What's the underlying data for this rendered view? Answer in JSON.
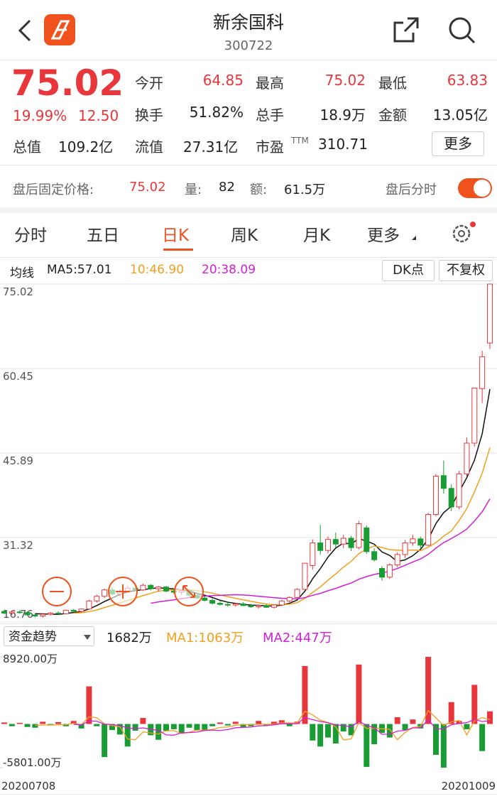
{
  "header": {
    "title": "新余国科",
    "code": "300722"
  },
  "quote": {
    "price": "75.02",
    "change_pct": "19.99%",
    "change": "12.50",
    "fields": [
      [
        {
          "label": "今开",
          "value": "64.85"
        },
        {
          "label": "最高",
          "value": "75.02"
        },
        {
          "label": "最低",
          "value": "63.83"
        }
      ],
      [
        {
          "label": "换手",
          "value": "51.82%"
        },
        {
          "label": "总手",
          "value": "18.9万"
        },
        {
          "label": "金额",
          "value": "13.05亿"
        }
      ]
    ],
    "stats": [
      {
        "label": "总值",
        "value": "109.2亿"
      },
      {
        "label": "流值",
        "value": "27.31亿"
      },
      {
        "label": "市盈",
        "sup": "TTM",
        "value": "310.71"
      }
    ],
    "more_button": "更多"
  },
  "after_hours": {
    "label": "盘后固定价格:",
    "price": "75.02",
    "volume_label": "量:",
    "volume": "82",
    "amount_label": "额:",
    "amount": "61.5万",
    "toggle_label": "盘后分时"
  },
  "tabs": [
    "分时",
    "五日",
    "日K",
    "周K",
    "月K",
    "更多"
  ],
  "indicator_bar": {
    "label": "均线",
    "ma5": "MA5:57.01",
    "ma10": "10:46.90",
    "ma20": "20:38.09",
    "buttons": [
      "DK点",
      "不复权"
    ]
  },
  "money_flow_bar": {
    "selector": "资金趋势",
    "current": "1682万",
    "ma1": "MA1:1063万",
    "ma2": "MA2:447万"
  },
  "chart_data": [
    {
      "type": "candlestick",
      "up_color": "#e8373b",
      "down_color": "#1a9c35",
      "ylim": [
        16.76,
        75.02
      ],
      "yticks": [
        16.76,
        31.32,
        45.89,
        60.45,
        75.02
      ],
      "grid": true,
      "ohlc": [
        [
          18.6,
          18.9,
          18.1,
          18.3
        ],
        [
          18.3,
          18.7,
          18.0,
          18.5
        ],
        [
          18.5,
          18.8,
          18.2,
          18.4
        ],
        [
          18.4,
          18.6,
          17.9,
          18.0
        ],
        [
          18.0,
          18.3,
          17.6,
          17.8
        ],
        [
          17.8,
          18.2,
          17.5,
          18.1
        ],
        [
          18.1,
          18.5,
          17.9,
          18.3
        ],
        [
          18.3,
          18.6,
          18.0,
          18.2
        ],
        [
          18.2,
          18.9,
          18.1,
          18.8
        ],
        [
          18.8,
          19.0,
          18.5,
          18.6
        ],
        [
          18.6,
          19.1,
          18.4,
          19.0
        ],
        [
          19.0,
          20.6,
          18.9,
          20.4
        ],
        [
          20.4,
          21.5,
          20.1,
          21.2
        ],
        [
          21.2,
          22.5,
          20.9,
          22.3
        ],
        [
          22.3,
          22.8,
          21.3,
          21.6
        ],
        [
          21.6,
          22.4,
          21.2,
          22.1
        ],
        [
          22.1,
          23.0,
          21.8,
          22.6
        ],
        [
          22.6,
          23.1,
          22.0,
          22.3
        ],
        [
          22.3,
          23.4,
          22.1,
          23.1
        ],
        [
          23.1,
          23.3,
          22.2,
          22.5
        ],
        [
          22.5,
          23.0,
          22.0,
          22.8
        ],
        [
          22.8,
          23.0,
          21.9,
          22.1
        ],
        [
          22.1,
          22.6,
          21.6,
          21.9
        ],
        [
          21.9,
          22.4,
          21.4,
          22.2
        ],
        [
          22.2,
          22.5,
          21.2,
          21.4
        ],
        [
          21.4,
          21.8,
          20.7,
          20.9
        ],
        [
          20.9,
          21.3,
          20.3,
          20.5
        ],
        [
          20.5,
          20.9,
          19.8,
          20.0
        ],
        [
          20.0,
          20.4,
          19.6,
          19.8
        ],
        [
          19.8,
          20.1,
          19.4,
          19.7
        ],
        [
          19.7,
          20.0,
          19.4,
          19.9
        ],
        [
          19.9,
          20.2,
          19.5,
          19.6
        ],
        [
          19.6,
          19.9,
          19.2,
          19.4
        ],
        [
          19.4,
          19.8,
          19.1,
          19.6
        ],
        [
          19.6,
          19.9,
          19.2,
          19.3
        ],
        [
          19.3,
          19.8,
          19.1,
          19.7
        ],
        [
          19.7,
          20.6,
          19.5,
          20.4
        ],
        [
          20.4,
          21.2,
          20.2,
          21.0
        ],
        [
          21.0,
          22.6,
          20.8,
          22.4
        ],
        [
          22.4,
          26.9,
          22.3,
          26.9
        ],
        [
          26.5,
          31.0,
          25.8,
          30.4
        ],
        [
          30.4,
          33.5,
          28.4,
          29.1
        ],
        [
          29.1,
          31.5,
          28.6,
          31.0
        ],
        [
          31.0,
          32.2,
          29.6,
          30.2
        ],
        [
          30.2,
          31.8,
          29.5,
          31.2
        ],
        [
          31.2,
          31.6,
          29.0,
          29.6
        ],
        [
          29.6,
          34.2,
          29.3,
          33.7
        ],
        [
          33.0,
          33.4,
          28.5,
          28.9
        ],
        [
          28.9,
          29.5,
          27.2,
          27.5
        ],
        [
          26.0,
          26.4,
          23.9,
          24.5
        ],
        [
          24.5,
          26.9,
          24.2,
          26.6
        ],
        [
          26.6,
          28.8,
          26.2,
          28.4
        ],
        [
          28.4,
          30.9,
          27.8,
          30.4
        ],
        [
          30.4,
          31.8,
          29.9,
          31.1
        ],
        [
          31.1,
          31.5,
          29.4,
          30.0
        ],
        [
          30.0,
          35.6,
          29.8,
          35.3
        ],
        [
          35.3,
          42.3,
          35.0,
          41.9
        ],
        [
          42.0,
          44.6,
          38.9,
          39.8
        ],
        [
          39.8,
          40.5,
          35.9,
          36.6
        ],
        [
          36.6,
          42.8,
          36.2,
          42.3
        ],
        [
          42.3,
          48.6,
          41.8,
          47.6
        ],
        [
          47.6,
          57.1,
          47.0,
          57.1
        ],
        [
          57.0,
          63.5,
          54.5,
          62.5
        ],
        [
          64.85,
          75.02,
          63.83,
          75.02
        ]
      ]
    },
    {
      "type": "bar",
      "up_color": "#e8373b",
      "down_color": "#1a9c35",
      "ylim": [
        -5801,
        8920
      ],
      "yticks": [
        {
          "value": 8920,
          "label": "8920.00万"
        },
        {
          "value": -5801,
          "label": "-5801.00万"
        }
      ],
      "values": [
        200,
        -300,
        150,
        -400,
        -500,
        300,
        -200,
        250,
        -300,
        400,
        -600,
        5000,
        -300,
        -4400,
        -800,
        -1400,
        -3000,
        -900,
        800,
        -1500,
        -2100,
        -900,
        -700,
        -1200,
        -500,
        -800,
        -900,
        -300,
        200,
        -200,
        300,
        -400,
        -300,
        400,
        -200,
        300,
        500,
        -300,
        300,
        7700,
        -2200,
        -3000,
        -1800,
        -2600,
        -1000,
        -1500,
        7900,
        -5700,
        -2700,
        -1200,
        -1800,
        900,
        -800,
        600,
        -600,
        8920,
        -4100,
        -5801,
        2900,
        400,
        -700,
        5200,
        -3600,
        1682
      ],
      "categories": [
        "20200708",
        null,
        null,
        null,
        null,
        null,
        null,
        null,
        null,
        null,
        null,
        null,
        null,
        null,
        null,
        null,
        null,
        null,
        null,
        null,
        null,
        null,
        null,
        null,
        null,
        null,
        null,
        null,
        null,
        null,
        null,
        null,
        null,
        null,
        null,
        null,
        null,
        null,
        null,
        null,
        null,
        null,
        null,
        null,
        null,
        null,
        null,
        null,
        null,
        null,
        null,
        null,
        null,
        null,
        null,
        null,
        null,
        null,
        null,
        null,
        null,
        null,
        null,
        "20201009"
      ]
    }
  ]
}
